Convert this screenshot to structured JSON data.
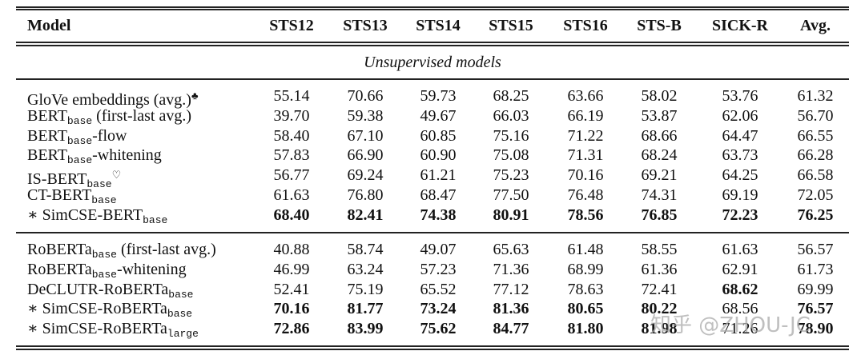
{
  "table": {
    "header": [
      "Model",
      "STS12",
      "STS13",
      "STS14",
      "STS15",
      "STS16",
      "STS-B",
      "SICK-R",
      "Avg."
    ],
    "section_title": "Unsupervised models",
    "groups": [
      {
        "rows": [
          {
            "model": {
              "name": "GloVe embeddings (avg.)",
              "sup": "♣"
            },
            "cells": [
              "55.14",
              "70.66",
              "59.73",
              "68.25",
              "63.66",
              "58.02",
              "53.76",
              "61.32"
            ]
          },
          {
            "model": {
              "name": "BERT",
              "sub": "base",
              "suffix": " (first-last avg.)"
            },
            "cells": [
              "39.70",
              "59.38",
              "49.67",
              "66.03",
              "66.19",
              "53.87",
              "62.06",
              "56.70"
            ]
          },
          {
            "model": {
              "name": "BERT",
              "sub": "base",
              "suffix": "-flow"
            },
            "cells": [
              "58.40",
              "67.10",
              "60.85",
              "75.16",
              "71.22",
              "68.66",
              "64.47",
              "66.55"
            ]
          },
          {
            "model": {
              "name": "BERT",
              "sub": "base",
              "suffix": "-whitening"
            },
            "cells": [
              "57.83",
              "66.90",
              "60.90",
              "75.08",
              "71.31",
              "68.24",
              "63.73",
              "66.28"
            ]
          },
          {
            "model": {
              "name": "IS-BERT",
              "sub": "base",
              "sup": "♡"
            },
            "cells": [
              "56.77",
              "69.24",
              "61.21",
              "75.23",
              "70.16",
              "69.21",
              "64.25",
              "66.58"
            ]
          },
          {
            "model": {
              "name": "CT-BERT",
              "sub": "base"
            },
            "cells": [
              "61.63",
              "76.80",
              "68.47",
              "77.50",
              "76.48",
              "74.31",
              "69.19",
              "72.05"
            ]
          },
          {
            "model": {
              "prefix": "∗ ",
              "name": "SimCSE-BERT",
              "sub": "base"
            },
            "cells": [
              "68.40",
              "82.41",
              "74.38",
              "80.91",
              "78.56",
              "76.85",
              "72.23",
              "76.25"
            ],
            "bold": [
              true,
              true,
              true,
              true,
              true,
              true,
              true,
              true
            ]
          }
        ]
      },
      {
        "rows": [
          {
            "model": {
              "name": "RoBERTa",
              "sub": "base",
              "suffix": " (first-last avg.)"
            },
            "cells": [
              "40.88",
              "58.74",
              "49.07",
              "65.63",
              "61.48",
              "58.55",
              "61.63",
              "56.57"
            ]
          },
          {
            "model": {
              "name": "RoBERTa",
              "sub": "base",
              "suffix": "-whitening"
            },
            "cells": [
              "46.99",
              "63.24",
              "57.23",
              "71.36",
              "68.99",
              "61.36",
              "62.91",
              "61.73"
            ]
          },
          {
            "model": {
              "name": "DeCLUTR-RoBERTa",
              "sub": "base"
            },
            "cells": [
              "52.41",
              "75.19",
              "65.52",
              "77.12",
              "78.63",
              "72.41",
              "68.62",
              "69.99"
            ],
            "bold": [
              false,
              false,
              false,
              false,
              false,
              false,
              true,
              false
            ]
          },
          {
            "model": {
              "prefix": "∗ ",
              "name": "SimCSE-RoBERTa",
              "sub": "base"
            },
            "cells": [
              "70.16",
              "81.77",
              "73.24",
              "81.36",
              "80.65",
              "80.22",
              "68.56",
              "76.57"
            ],
            "bold": [
              true,
              true,
              true,
              true,
              true,
              true,
              false,
              true
            ]
          },
          {
            "model": {
              "prefix": "∗ ",
              "name": "SimCSE-RoBERTa",
              "sub": "large"
            },
            "cells": [
              "72.86",
              "83.99",
              "75.62",
              "84.77",
              "81.80",
              "81.98",
              "71.26",
              "78.90"
            ],
            "bold": [
              true,
              true,
              true,
              true,
              true,
              true,
              false,
              true
            ]
          }
        ]
      }
    ],
    "watermark": "知乎 @ZHOU-JC"
  }
}
